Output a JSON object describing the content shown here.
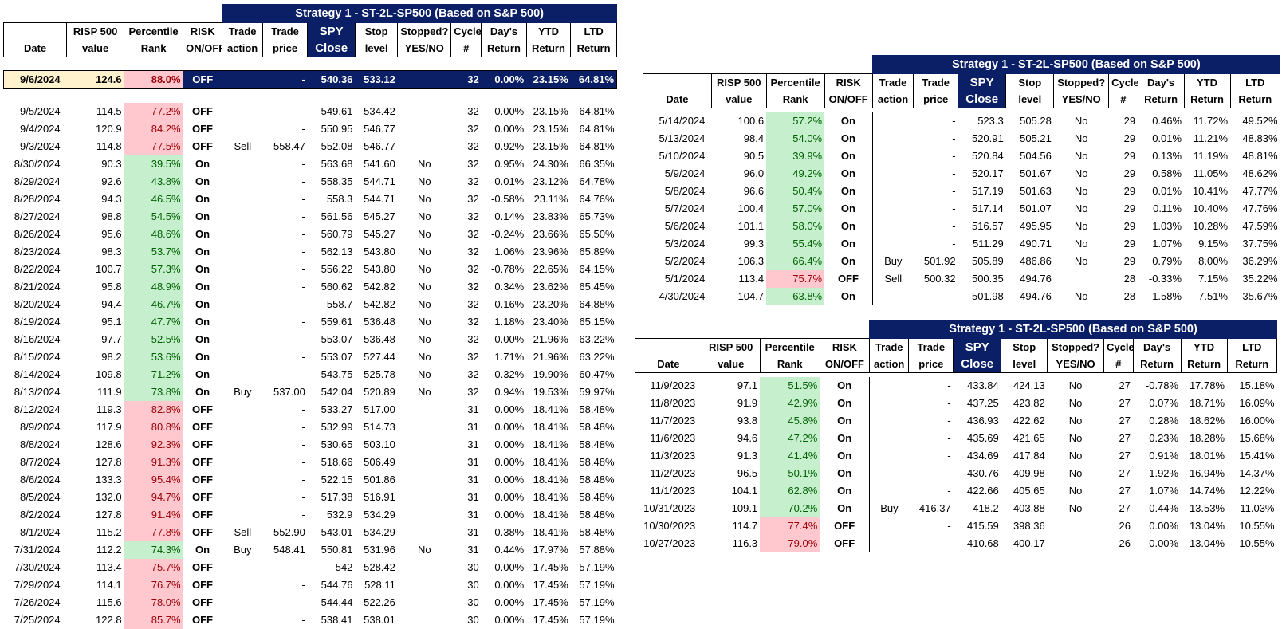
{
  "title": "Strategy 1 - ST-2L-SP500 (Based on S&P 500)",
  "headers": {
    "top": [
      "",
      "RISP 500",
      "Percentile",
      "RISK",
      "Trade",
      "Trade",
      "SPY",
      "Stop",
      "Stopped?",
      "Cycle",
      "Day's",
      "YTD",
      "LTD"
    ],
    "bottom": [
      "Date",
      "value",
      "Rank",
      "ON/OFF",
      "action",
      "price",
      "Close",
      "level",
      "YES/NO",
      "#",
      "Return",
      "Return",
      "Return"
    ]
  },
  "current_row": {
    "date": "9/6/2024",
    "risp": "124.6",
    "rank": "88.0%",
    "risk": "OFF",
    "action": "",
    "price": "-",
    "close": "540.36",
    "stop": "533.12",
    "stopped": "",
    "cycle": "32",
    "day": "0.00%",
    "ytd": "23.15%",
    "ltd": "64.81%"
  },
  "colors": {
    "navy": "#0b1f66",
    "red_fill": "#ffc7ce",
    "red_text": "#9c0006",
    "green_fill": "#c6efce",
    "green_text": "#006100",
    "current_fill": "#fff2cc"
  },
  "tables": [
    {
      "rows": [
        [
          "9/5/2024",
          "114.5",
          "77.2%",
          "OFF",
          "",
          "-",
          "549.61",
          "534.42",
          "",
          "32",
          "0.00%",
          "23.15%",
          "64.81%"
        ],
        [
          "9/4/2024",
          "120.9",
          "84.2%",
          "OFF",
          "",
          "-",
          "550.95",
          "546.77",
          "",
          "32",
          "0.00%",
          "23.15%",
          "64.81%"
        ],
        [
          "9/3/2024",
          "114.8",
          "77.5%",
          "OFF",
          "Sell",
          "558.47",
          "552.08",
          "546.77",
          "",
          "32",
          "-0.92%",
          "23.15%",
          "64.81%"
        ],
        [
          "8/30/2024",
          "90.3",
          "39.5%",
          "On",
          "",
          "-",
          "563.68",
          "541.60",
          "No",
          "32",
          "0.95%",
          "24.30%",
          "66.35%"
        ],
        [
          "8/29/2024",
          "92.6",
          "43.8%",
          "On",
          "",
          "-",
          "558.35",
          "544.71",
          "No",
          "32",
          "0.01%",
          "23.12%",
          "64.78%"
        ],
        [
          "8/28/2024",
          "94.3",
          "46.5%",
          "On",
          "",
          "-",
          "558.3",
          "544.71",
          "No",
          "32",
          "-0.58%",
          "23.11%",
          "64.76%"
        ],
        [
          "8/27/2024",
          "98.8",
          "54.5%",
          "On",
          "",
          "-",
          "561.56",
          "545.27",
          "No",
          "32",
          "0.14%",
          "23.83%",
          "65.73%"
        ],
        [
          "8/26/2024",
          "95.6",
          "48.6%",
          "On",
          "",
          "-",
          "560.79",
          "545.27",
          "No",
          "32",
          "-0.24%",
          "23.66%",
          "65.50%"
        ],
        [
          "8/23/2024",
          "98.3",
          "53.7%",
          "On",
          "",
          "-",
          "562.13",
          "543.80",
          "No",
          "32",
          "1.06%",
          "23.96%",
          "65.89%"
        ],
        [
          "8/22/2024",
          "100.7",
          "57.3%",
          "On",
          "",
          "-",
          "556.22",
          "543.80",
          "No",
          "32",
          "-0.78%",
          "22.65%",
          "64.15%"
        ],
        [
          "8/21/2024",
          "95.8",
          "48.9%",
          "On",
          "",
          "-",
          "560.62",
          "542.82",
          "No",
          "32",
          "0.34%",
          "23.62%",
          "65.45%"
        ],
        [
          "8/20/2024",
          "94.4",
          "46.7%",
          "On",
          "",
          "-",
          "558.7",
          "542.82",
          "No",
          "32",
          "-0.16%",
          "23.20%",
          "64.88%"
        ],
        [
          "8/19/2024",
          "95.1",
          "47.7%",
          "On",
          "",
          "-",
          "559.61",
          "536.48",
          "No",
          "32",
          "1.18%",
          "23.40%",
          "65.15%"
        ],
        [
          "8/16/2024",
          "97.7",
          "52.5%",
          "On",
          "",
          "-",
          "553.07",
          "536.48",
          "No",
          "32",
          "0.00%",
          "21.96%",
          "63.22%"
        ],
        [
          "8/15/2024",
          "98.2",
          "53.6%",
          "On",
          "",
          "-",
          "553.07",
          "527.44",
          "No",
          "32",
          "1.71%",
          "21.96%",
          "63.22%"
        ],
        [
          "8/14/2024",
          "109.8",
          "71.2%",
          "On",
          "",
          "-",
          "543.75",
          "525.78",
          "No",
          "32",
          "0.32%",
          "19.90%",
          "60.47%"
        ],
        [
          "8/13/2024",
          "111.9",
          "73.8%",
          "On",
          "Buy",
          "537.00",
          "542.04",
          "520.89",
          "No",
          "32",
          "0.94%",
          "19.53%",
          "59.97%"
        ],
        [
          "8/12/2024",
          "119.3",
          "82.8%",
          "OFF",
          "",
          "-",
          "533.27",
          "517.00",
          "",
          "31",
          "0.00%",
          "18.41%",
          "58.48%"
        ],
        [
          "8/9/2024",
          "117.9",
          "80.8%",
          "OFF",
          "",
          "-",
          "532.99",
          "514.73",
          "",
          "31",
          "0.00%",
          "18.41%",
          "58.48%"
        ],
        [
          "8/8/2024",
          "128.6",
          "92.3%",
          "OFF",
          "",
          "-",
          "530.65",
          "503.10",
          "",
          "31",
          "0.00%",
          "18.41%",
          "58.48%"
        ],
        [
          "8/7/2024",
          "127.8",
          "91.3%",
          "OFF",
          "",
          "-",
          "518.66",
          "506.49",
          "",
          "31",
          "0.00%",
          "18.41%",
          "58.48%"
        ],
        [
          "8/6/2024",
          "133.3",
          "95.4%",
          "OFF",
          "",
          "-",
          "522.15",
          "501.86",
          "",
          "31",
          "0.00%",
          "18.41%",
          "58.48%"
        ],
        [
          "8/5/2024",
          "132.0",
          "94.7%",
          "OFF",
          "",
          "-",
          "517.38",
          "516.91",
          "",
          "31",
          "0.00%",
          "18.41%",
          "58.48%"
        ],
        [
          "8/2/2024",
          "127.8",
          "91.4%",
          "OFF",
          "",
          "-",
          "532.9",
          "534.29",
          "",
          "31",
          "0.00%",
          "18.41%",
          "58.48%"
        ],
        [
          "8/1/2024",
          "115.2",
          "77.8%",
          "OFF",
          "Sell",
          "552.90",
          "543.01",
          "534.29",
          "",
          "31",
          "0.38%",
          "18.41%",
          "58.48%"
        ],
        [
          "7/31/2024",
          "112.2",
          "74.3%",
          "On",
          "Buy",
          "548.41",
          "550.81",
          "531.96",
          "No",
          "31",
          "0.44%",
          "17.97%",
          "57.88%"
        ],
        [
          "7/30/2024",
          "113.4",
          "75.7%",
          "OFF",
          "",
          "-",
          "542",
          "528.42",
          "",
          "30",
          "0.00%",
          "17.45%",
          "57.19%"
        ],
        [
          "7/29/2024",
          "114.1",
          "76.7%",
          "OFF",
          "",
          "-",
          "544.76",
          "528.11",
          "",
          "30",
          "0.00%",
          "17.45%",
          "57.19%"
        ],
        [
          "7/26/2024",
          "115.6",
          "78.0%",
          "OFF",
          "",
          "-",
          "544.44",
          "522.26",
          "",
          "30",
          "0.00%",
          "17.45%",
          "57.19%"
        ],
        [
          "7/25/2024",
          "122.8",
          "85.7%",
          "OFF",
          "",
          "-",
          "538.41",
          "538.01",
          "",
          "30",
          "0.00%",
          "17.45%",
          "57.19%"
        ]
      ]
    },
    {
      "rows": [
        [
          "5/14/2024",
          "100.6",
          "57.2%",
          "On",
          "",
          "-",
          "523.3",
          "505.28",
          "No",
          "29",
          "0.46%",
          "11.72%",
          "49.52%"
        ],
        [
          "5/13/2024",
          "98.4",
          "54.0%",
          "On",
          "",
          "-",
          "520.91",
          "505.21",
          "No",
          "29",
          "0.01%",
          "11.21%",
          "48.83%"
        ],
        [
          "5/10/2024",
          "90.5",
          "39.9%",
          "On",
          "",
          "-",
          "520.84",
          "504.56",
          "No",
          "29",
          "0.13%",
          "11.19%",
          "48.81%"
        ],
        [
          "5/9/2024",
          "96.0",
          "49.2%",
          "On",
          "",
          "-",
          "520.17",
          "501.67",
          "No",
          "29",
          "0.58%",
          "11.05%",
          "48.62%"
        ],
        [
          "5/8/2024",
          "96.6",
          "50.4%",
          "On",
          "",
          "-",
          "517.19",
          "501.63",
          "No",
          "29",
          "0.01%",
          "10.41%",
          "47.77%"
        ],
        [
          "5/7/2024",
          "100.4",
          "57.0%",
          "On",
          "",
          "-",
          "517.14",
          "501.07",
          "No",
          "29",
          "0.11%",
          "10.40%",
          "47.76%"
        ],
        [
          "5/6/2024",
          "101.1",
          "58.0%",
          "On",
          "",
          "-",
          "516.57",
          "495.95",
          "No",
          "29",
          "1.03%",
          "10.28%",
          "47.59%"
        ],
        [
          "5/3/2024",
          "99.3",
          "55.4%",
          "On",
          "",
          "-",
          "511.29",
          "490.71",
          "No",
          "29",
          "1.07%",
          "9.15%",
          "37.75%"
        ],
        [
          "5/2/2024",
          "106.3",
          "66.4%",
          "On",
          "Buy",
          "501.92",
          "505.89",
          "486.86",
          "No",
          "29",
          "0.79%",
          "8.00%",
          "36.29%"
        ],
        [
          "5/1/2024",
          "113.4",
          "75.7%",
          "OFF",
          "Sell",
          "500.32",
          "500.35",
          "494.76",
          "",
          "28",
          "-0.33%",
          "7.15%",
          "35.22%"
        ],
        [
          "4/30/2024",
          "104.7",
          "63.8%",
          "On",
          "",
          "-",
          "501.98",
          "494.76",
          "No",
          "28",
          "-1.58%",
          "7.51%",
          "35.67%"
        ]
      ]
    },
    {
      "rows": [
        [
          "11/9/2023",
          "97.1",
          "51.5%",
          "On",
          "",
          "-",
          "433.84",
          "424.13",
          "No",
          "27",
          "-0.78%",
          "17.78%",
          "15.18%"
        ],
        [
          "11/8/2023",
          "91.9",
          "42.9%",
          "On",
          "",
          "-",
          "437.25",
          "423.82",
          "No",
          "27",
          "0.07%",
          "18.71%",
          "16.09%"
        ],
        [
          "11/7/2023",
          "93.8",
          "45.8%",
          "On",
          "",
          "-",
          "436.93",
          "422.62",
          "No",
          "27",
          "0.28%",
          "18.62%",
          "16.00%"
        ],
        [
          "11/6/2023",
          "94.6",
          "47.2%",
          "On",
          "",
          "-",
          "435.69",
          "421.65",
          "No",
          "27",
          "0.23%",
          "18.28%",
          "15.68%"
        ],
        [
          "11/3/2023",
          "91.3",
          "41.4%",
          "On",
          "",
          "-",
          "434.69",
          "417.84",
          "No",
          "27",
          "0.91%",
          "18.01%",
          "15.41%"
        ],
        [
          "11/2/2023",
          "96.5",
          "50.1%",
          "On",
          "",
          "-",
          "430.76",
          "409.98",
          "No",
          "27",
          "1.92%",
          "16.94%",
          "14.37%"
        ],
        [
          "11/1/2023",
          "104.1",
          "62.8%",
          "On",
          "",
          "-",
          "422.66",
          "405.65",
          "No",
          "27",
          "1.07%",
          "14.74%",
          "12.22%"
        ],
        [
          "10/31/2023",
          "109.1",
          "70.2%",
          "On",
          "Buy",
          "416.37",
          "418.2",
          "403.88",
          "No",
          "27",
          "0.44%",
          "13.53%",
          "11.03%"
        ],
        [
          "10/30/2023",
          "114.7",
          "77.4%",
          "OFF",
          "",
          "-",
          "415.59",
          "398.36",
          "",
          "26",
          "0.00%",
          "13.04%",
          "10.55%"
        ],
        [
          "10/27/2023",
          "116.3",
          "79.0%",
          "OFF",
          "",
          "-",
          "410.68",
          "400.17",
          "",
          "26",
          "0.00%",
          "13.04%",
          "10.55%"
        ]
      ]
    }
  ]
}
